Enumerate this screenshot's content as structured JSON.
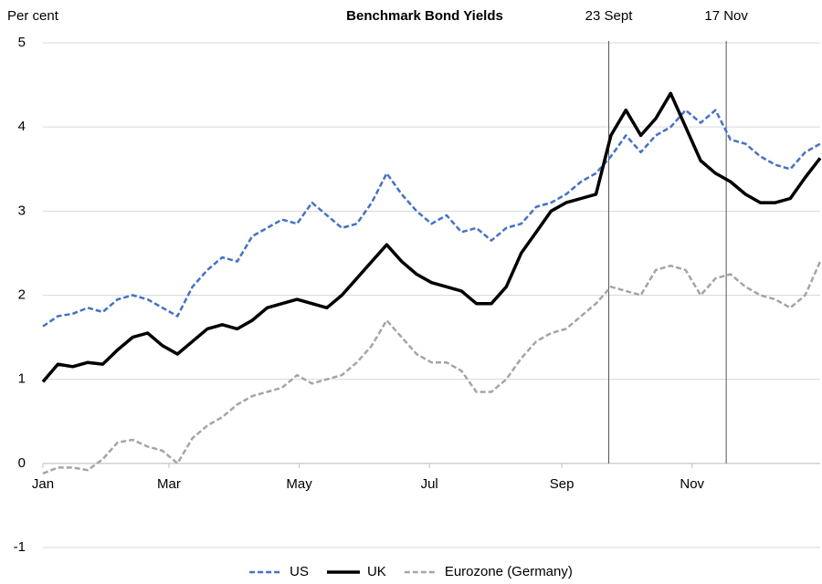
{
  "chart_data": {
    "type": "line",
    "title": "Benchmark Bond Yields",
    "y_label": "Per cent",
    "x": [
      0,
      7,
      14,
      21,
      28,
      35,
      42,
      49,
      56,
      63,
      70,
      77,
      84,
      91,
      98,
      105,
      112,
      119,
      126,
      133,
      140,
      147,
      154,
      161,
      168,
      175,
      182,
      189,
      196,
      203,
      210,
      217,
      224,
      231,
      238,
      245,
      252,
      259,
      266,
      273,
      280,
      287,
      294,
      301,
      308,
      315,
      322,
      329,
      336,
      343,
      350,
      357,
      364
    ],
    "series": [
      {
        "name": "US",
        "color": "#4472c4",
        "dashed": true,
        "values": [
          1.63,
          1.75,
          1.78,
          1.85,
          1.8,
          1.95,
          2.0,
          1.95,
          1.85,
          1.75,
          2.1,
          2.3,
          2.45,
          2.4,
          2.7,
          2.8,
          2.9,
          2.85,
          3.1,
          2.95,
          2.8,
          2.85,
          3.1,
          3.45,
          3.2,
          3.0,
          2.85,
          2.95,
          2.75,
          2.8,
          2.65,
          2.8,
          2.85,
          3.05,
          3.1,
          3.2,
          3.35,
          3.45,
          3.65,
          3.9,
          3.7,
          3.9,
          4.0,
          4.2,
          4.05,
          4.2,
          3.85,
          3.8,
          3.65,
          3.55,
          3.5,
          3.7,
          3.8
        ]
      },
      {
        "name": "UK",
        "color": "#000000",
        "dashed": false,
        "values": [
          0.97,
          1.18,
          1.15,
          1.2,
          1.18,
          1.35,
          1.5,
          1.55,
          1.4,
          1.3,
          1.45,
          1.6,
          1.65,
          1.6,
          1.7,
          1.85,
          1.9,
          1.95,
          1.9,
          1.85,
          2.0,
          2.2,
          2.4,
          2.6,
          2.4,
          2.25,
          2.15,
          2.1,
          2.05,
          1.9,
          1.9,
          2.1,
          2.5,
          2.75,
          3.0,
          3.1,
          3.15,
          3.2,
          3.9,
          4.2,
          3.9,
          4.1,
          4.4,
          4.0,
          3.6,
          3.45,
          3.35,
          3.2,
          3.1,
          3.1,
          3.15,
          3.4,
          3.63
        ]
      },
      {
        "name": "Eurozone (Germany)",
        "color": "#a5a5a5",
        "dashed": true,
        "values": [
          -0.12,
          -0.05,
          -0.05,
          -0.08,
          0.05,
          0.25,
          0.28,
          0.2,
          0.15,
          0.0,
          0.3,
          0.45,
          0.55,
          0.7,
          0.8,
          0.85,
          0.9,
          1.05,
          0.95,
          1.0,
          1.05,
          1.2,
          1.4,
          1.7,
          1.5,
          1.3,
          1.2,
          1.2,
          1.1,
          0.85,
          0.85,
          1.0,
          1.25,
          1.45,
          1.55,
          1.6,
          1.75,
          1.9,
          2.1,
          2.05,
          2.0,
          2.3,
          2.35,
          2.3,
          2.0,
          2.2,
          2.25,
          2.1,
          2.0,
          1.95,
          1.85,
          2.0,
          2.4
        ]
      }
    ],
    "xlim": [
      0,
      364
    ],
    "xticks": [
      {
        "value": 0,
        "label": "Jan"
      },
      {
        "value": 59,
        "label": "Mar"
      },
      {
        "value": 120,
        "label": "May"
      },
      {
        "value": 181,
        "label": "Jul"
      },
      {
        "value": 243,
        "label": "Sep"
      },
      {
        "value": 304,
        "label": "Nov"
      }
    ],
    "ylim": [
      -1,
      5
    ],
    "yticks": [
      -1,
      0,
      1,
      2,
      3,
      4,
      5
    ],
    "grid": true,
    "annotations": [
      {
        "x": 265,
        "label": "23 Sept"
      },
      {
        "x": 320,
        "label": "17 Nov"
      }
    ],
    "legend": "bottom"
  }
}
